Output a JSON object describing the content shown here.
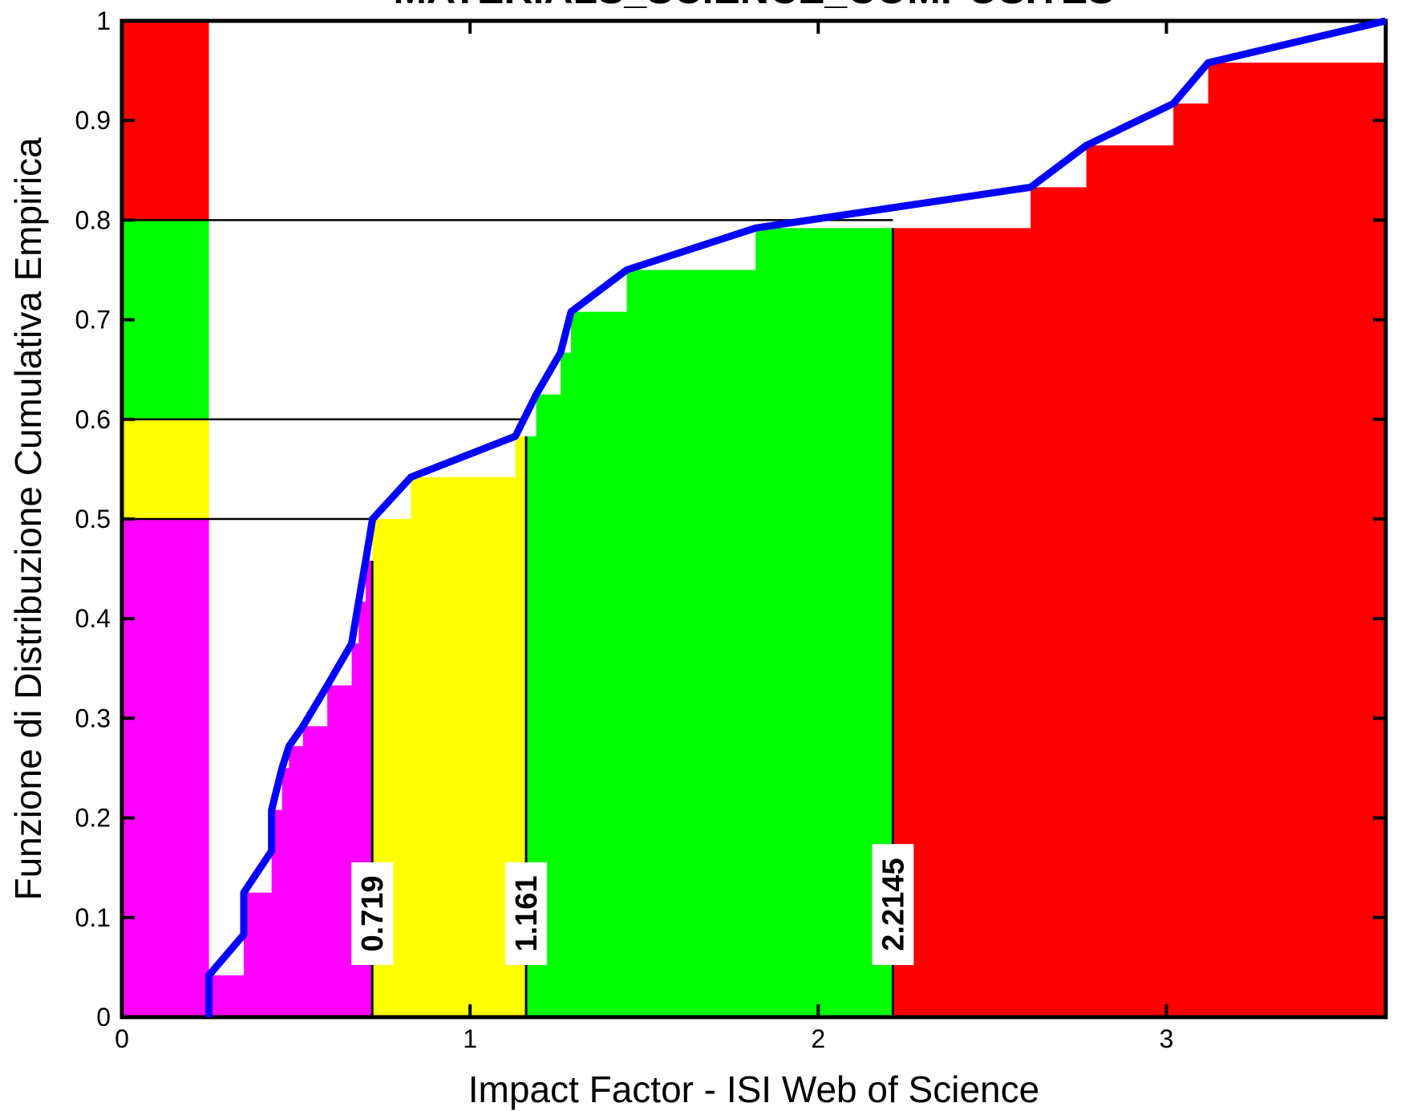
{
  "chart_data": {
    "type": "line",
    "title": "MATERIALS_SCIENCE_COMPOSITES",
    "xlabel": "Impact Factor - ISI Web of Science",
    "ylabel": "Funzione di Distribuzione Cumulativa Empirica",
    "xlim": [
      0,
      3.63
    ],
    "ylim": [
      0,
      1
    ],
    "xticks": [
      0,
      1,
      2,
      3
    ],
    "yticks": [
      0,
      0.1,
      0.2,
      0.3,
      0.4,
      0.5,
      0.6,
      0.7,
      0.8,
      0.9,
      1
    ],
    "xtick_labels": [
      "0",
      "1",
      "2",
      "3"
    ],
    "ytick_labels": [
      "0",
      "0.1",
      "0.2",
      "0.3",
      "0.4",
      "0.5",
      "0.6",
      "0.7",
      "0.8",
      "0.9",
      "1"
    ],
    "colors": {
      "line": "#0000ff",
      "q1": "#ff00ff",
      "q2": "#ffff00",
      "q3": "#00ff00",
      "q4": "#ff0000",
      "axis": "#000000"
    },
    "class_legend_bar": {
      "x_range": [
        0,
        0.25
      ],
      "bands": [
        {
          "from": 0,
          "to": 0.5,
          "color": "#ff00ff"
        },
        {
          "from": 0.5,
          "to": 0.6,
          "color": "#ffff00"
        },
        {
          "from": 0.6,
          "to": 0.8,
          "color": "#00ff00"
        },
        {
          "from": 0.8,
          "to": 1.0,
          "color": "#ff0000"
        }
      ]
    },
    "thresholds": [
      {
        "x": 0.719,
        "y": 0.5,
        "label": "0.719"
      },
      {
        "x": 1.161,
        "y": 0.6,
        "label": "1.161"
      },
      {
        "x": 2.2145,
        "y": 0.8,
        "label": "2.2145"
      }
    ],
    "series": [
      {
        "x": [
          0.25,
          0.25,
          0.35,
          0.35,
          0.43,
          0.43,
          0.46,
          0.48,
          0.52,
          0.59,
          0.66,
          0.68,
          0.7,
          0.72,
          0.83,
          1.13,
          1.19,
          1.26,
          1.29,
          1.45,
          1.82,
          2.61,
          2.77,
          3.02,
          3.12,
          3.63
        ],
        "y": [
          0.0,
          0.042,
          0.083,
          0.125,
          0.167,
          0.208,
          0.25,
          0.272,
          0.292,
          0.333,
          0.375,
          0.417,
          0.458,
          0.5,
          0.542,
          0.583,
          0.625,
          0.667,
          0.708,
          0.75,
          0.792,
          0.833,
          0.875,
          0.917,
          0.958,
          1.0
        ]
      }
    ]
  }
}
